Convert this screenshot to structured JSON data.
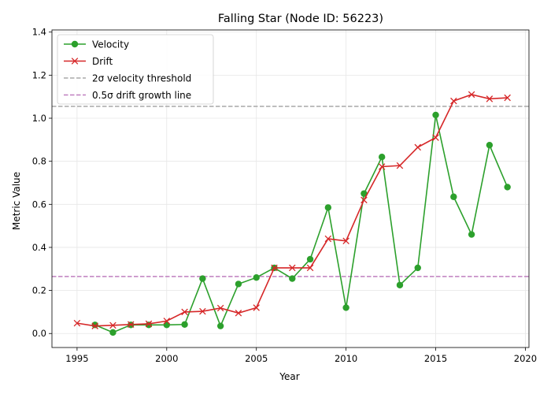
{
  "chart_data": {
    "type": "line",
    "title": "Falling Star (Node ID: 56223)",
    "xlabel": "Year",
    "ylabel": "Metric Value",
    "xlim": [
      1993.6,
      2020.2
    ],
    "ylim": [
      -0.065,
      1.41
    ],
    "xticks": [
      1995,
      2000,
      2005,
      2010,
      2015,
      2020
    ],
    "yticks": [
      0.0,
      0.2,
      0.4,
      0.6,
      0.8,
      1.0,
      1.2,
      1.4
    ],
    "ytick_labels": [
      "0.0",
      "0.2",
      "0.4",
      "0.6",
      "0.8",
      "1.0",
      "1.2",
      "1.4"
    ],
    "grid": true,
    "legend_position": "top-left",
    "series": [
      {
        "name": "Velocity",
        "color": "#2ca02c",
        "marker": "circle",
        "x": [
          1996,
          1997,
          1998,
          1999,
          2000,
          2001,
          2002,
          2003,
          2004,
          2005,
          2006,
          2007,
          2008,
          2009,
          2010,
          2011,
          2012,
          2013,
          2014,
          2015,
          2016,
          2017,
          2018,
          2019
        ],
        "y": [
          0.04,
          0.005,
          0.04,
          0.04,
          0.04,
          0.042,
          0.255,
          0.035,
          0.23,
          0.26,
          0.305,
          0.255,
          0.345,
          0.585,
          0.12,
          0.65,
          0.82,
          0.225,
          0.305,
          1.015,
          0.635,
          0.46,
          0.875,
          0.68
        ]
      },
      {
        "name": "Drift",
        "color": "#d62728",
        "marker": "x",
        "x": [
          1995,
          1996,
          1997,
          1998,
          1999,
          2000,
          2001,
          2002,
          2003,
          2004,
          2005,
          2006,
          2007,
          2008,
          2009,
          2010,
          2011,
          2012,
          2013,
          2014,
          2015,
          2016,
          2017,
          2018,
          2019
        ],
        "y": [
          0.048,
          0.035,
          0.038,
          0.042,
          0.045,
          0.058,
          0.1,
          0.103,
          0.118,
          0.095,
          0.12,
          0.305,
          0.305,
          0.305,
          0.44,
          0.43,
          0.62,
          0.775,
          0.78,
          0.865,
          0.91,
          1.08,
          1.11,
          1.09,
          1.095
        ]
      }
    ],
    "reference_lines": [
      {
        "name": "2σ velocity threshold",
        "y": 1.055,
        "color": "#a9a9a9",
        "style": "dashed"
      },
      {
        "name": "0.5σ drift growth line",
        "y": 0.265,
        "color": "#bf7fbf",
        "style": "dashed"
      }
    ]
  }
}
